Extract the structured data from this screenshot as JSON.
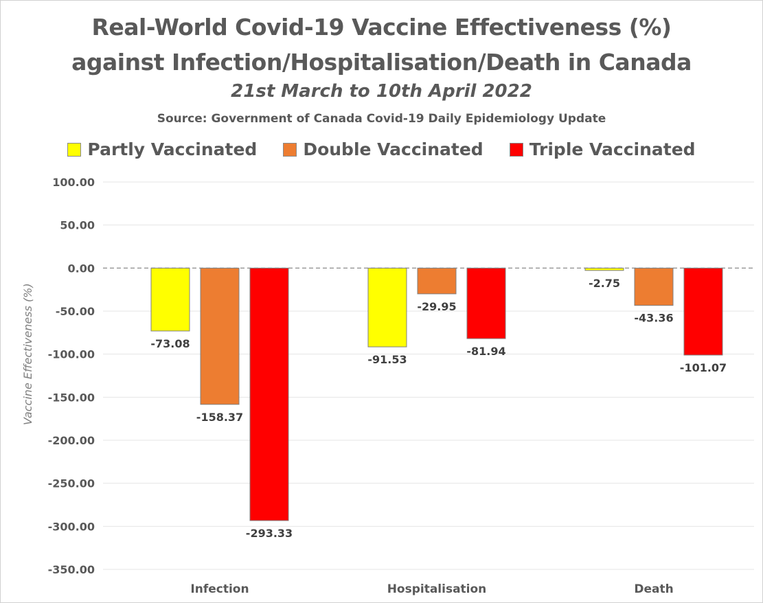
{
  "chart_data": {
    "type": "bar",
    "title": "Real-World Covid-19 Vaccine Effectiveness (%)",
    "title_line2": "against Infection/Hospitalisation/Death in Canada",
    "subtitle": "21st March to 10th April 2022",
    "source": "Source: Government of Canada Covid-19 Daily Epidemiology Update",
    "ylabel": "Vaccine Effectiveness (%)",
    "xlabel": "",
    "categories": [
      "Infection",
      "Hospitalisation",
      "Death"
    ],
    "ylim": [
      -350,
      100
    ],
    "yticks": [
      "100.00",
      "50.00",
      "0.00",
      "-50.00",
      "-100.00",
      "-150.00",
      "-200.00",
      "-250.00",
      "-300.00",
      "-350.00"
    ],
    "grid": true,
    "legend_position": "top",
    "zero_line": "dashed",
    "series": [
      {
        "name": "Partly Vaccinated",
        "color": "#ffff00",
        "values": [
          -73.08,
          -91.53,
          -2.75
        ],
        "labels": [
          "-73.08",
          "-91.53",
          "-2.75"
        ]
      },
      {
        "name": "Double Vaccinated",
        "color": "#ed7d31",
        "values": [
          -158.37,
          -29.95,
          -43.36
        ],
        "labels": [
          "-158.37",
          "-29.95",
          "-43.36"
        ]
      },
      {
        "name": "Triple Vaccinated",
        "color": "#ff0000",
        "values": [
          -293.33,
          -81.94,
          -101.07
        ],
        "labels": [
          "-293.33",
          "-81.94",
          "-101.07"
        ]
      }
    ]
  }
}
